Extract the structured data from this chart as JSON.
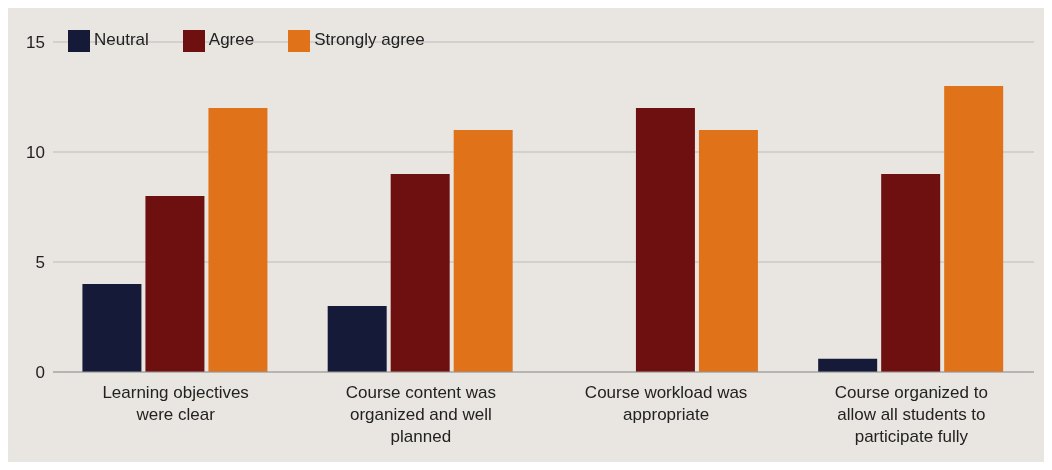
{
  "chart_data": {
    "type": "bar",
    "categories": [
      "Learning objectives were clear",
      "Course content was organized and well planned",
      "Course workload was appropriate",
      "Course organized to allow all students to participate fully"
    ],
    "series": [
      {
        "name": "Neutral",
        "color": "#141a38",
        "values": [
          4,
          3,
          0,
          0.6
        ]
      },
      {
        "name": "Agree",
        "color": "#6e1010",
        "values": [
          8,
          9,
          12,
          9
        ]
      },
      {
        "name": "Strongly agree",
        "color": "#e0731a",
        "values": [
          12,
          11,
          11,
          13
        ]
      }
    ],
    "ylim": [
      0,
      15
    ],
    "yticks": [
      0,
      5,
      10,
      15
    ],
    "grid": "y",
    "legend": "top left"
  }
}
